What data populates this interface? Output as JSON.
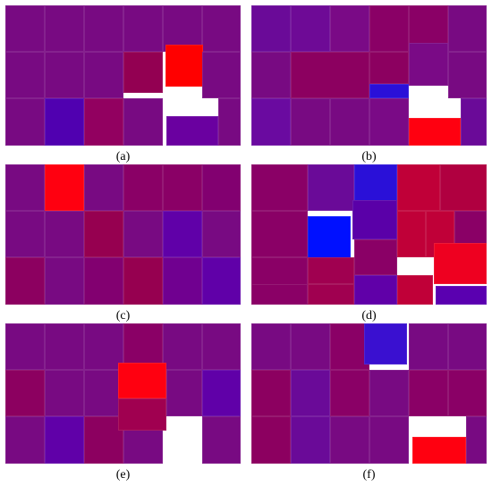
{
  "figure": {
    "panels": [
      {
        "id": "a",
        "caption": "(a)",
        "cells": [
          {
            "c": "#780a82"
          },
          {
            "c": "#780a82"
          },
          {
            "c": "#780a82"
          },
          {
            "c": "#780a82"
          },
          {
            "c": "#780a82"
          },
          {
            "c": "#780a82"
          },
          {
            "c": "#780a82"
          },
          {
            "c": "#780a82"
          },
          {
            "c": "#780a82"
          },
          {
            "c": "#930052"
          },
          {
            "c": "#ff0000"
          },
          {
            "c": "#780a82"
          },
          {
            "c": "#780a82"
          },
          {
            "c": "#5000b0"
          },
          {
            "c": "#920060"
          },
          {
            "c": "#780a82"
          },
          {
            "c": "#6a00a0"
          },
          {
            "c": "#780a82"
          }
        ]
      },
      {
        "id": "b",
        "caption": "(b)",
        "cells": [
          {
            "c": "#6a0a98"
          },
          {
            "c": "#6e0a96"
          },
          {
            "c": "#7a0a86"
          },
          {
            "c": "#8a0066"
          },
          {
            "c": "#8a0066"
          },
          {
            "c": "#780a82"
          },
          {
            "c": "#780a82"
          },
          {
            "c": "#8c0060"
          },
          {
            "c": "#8c0060"
          },
          {
            "c": "#7a0a86"
          },
          {
            "c": "#2a10d8"
          },
          {
            "c": "#780a82"
          },
          {
            "c": "#6a0aa0"
          },
          {
            "c": "#780a82"
          },
          {
            "c": "#780a82"
          },
          {
            "c": "#7a0a86"
          },
          {
            "c": "#ff0010"
          },
          {
            "c": "#6a0a98"
          }
        ]
      },
      {
        "id": "c",
        "caption": "(c)",
        "cells": [
          {
            "c": "#780a82"
          },
          {
            "c": "#ff0010"
          },
          {
            "c": "#780a82"
          },
          {
            "c": "#8a0066"
          },
          {
            "c": "#8a0066"
          },
          {
            "c": "#820070"
          },
          {
            "c": "#780a82"
          },
          {
            "c": "#780a82"
          },
          {
            "c": "#960050"
          },
          {
            "c": "#780a82"
          },
          {
            "c": "#6000a8"
          },
          {
            "c": "#780a82"
          },
          {
            "c": "#8c0060"
          },
          {
            "c": "#780a82"
          },
          {
            "c": "#820070"
          },
          {
            "c": "#960050"
          },
          {
            "c": "#700090"
          },
          {
            "c": "#6000a8"
          }
        ]
      },
      {
        "id": "d",
        "caption": "(d)",
        "cells": [
          {
            "c": "#8a0066"
          },
          {
            "c": "#6a0a98"
          },
          {
            "c": "#2a10d8"
          },
          {
            "c": "#c00038"
          },
          {
            "c": "#b00040"
          },
          {
            "c": "#8a0066"
          },
          {
            "c": "#0010ff"
          },
          {
            "c": "#5a00a8"
          },
          {
            "c": "#c00038"
          },
          {
            "c": "#c00038"
          },
          {
            "c": "#8a0066"
          },
          {
            "c": "#8a0066"
          },
          {
            "c": "#a00050"
          },
          {
            "c": "#8a0066"
          },
          {
            "c": "#ee0020"
          },
          {
            "c": "#8a0066"
          },
          {
            "c": "#a00050"
          },
          {
            "c": "#6000a8"
          },
          {
            "c": "#c00038"
          },
          {
            "c": "#5a00b0"
          }
        ]
      },
      {
        "id": "e",
        "caption": "(e)",
        "cells": [
          {
            "c": "#780a82"
          },
          {
            "c": "#780a82"
          },
          {
            "c": "#780a82"
          },
          {
            "c": "#8a0066"
          },
          {
            "c": "#780a82"
          },
          {
            "c": "#780a82"
          },
          {
            "c": "#8c0060"
          },
          {
            "c": "#780a82"
          },
          {
            "c": "#780a82"
          },
          {
            "c": "#ff0010"
          },
          {
            "c": "#780a82"
          },
          {
            "c": "#6000a8"
          },
          {
            "c": "#780a82"
          },
          {
            "c": "#6000a8"
          },
          {
            "c": "#8c0060"
          },
          {
            "c": "#780a82"
          },
          {
            "c": "#a00050"
          },
          {
            "c": "#780a82"
          }
        ]
      },
      {
        "id": "f",
        "caption": "(f)",
        "cells": [
          {
            "c": "#780a82"
          },
          {
            "c": "#780a82"
          },
          {
            "c": "#8a0066"
          },
          {
            "c": "#3a10d0"
          },
          {
            "c": "#780a82"
          },
          {
            "c": "#780a82"
          },
          {
            "c": "#8c0060"
          },
          {
            "c": "#6a0a98"
          },
          {
            "c": "#8a0066"
          },
          {
            "c": "#780a82"
          },
          {
            "c": "#8a0066"
          },
          {
            "c": "#8a0066"
          },
          {
            "c": "#8c0060"
          },
          {
            "c": "#6a0a98"
          },
          {
            "c": "#780a82"
          },
          {
            "c": "#780a82"
          },
          {
            "c": "#ff0010"
          },
          {
            "c": "#780a82"
          }
        ]
      }
    ]
  }
}
